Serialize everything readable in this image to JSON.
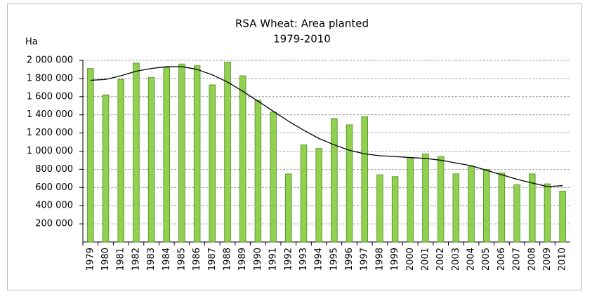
{
  "chart_data": {
    "type": "bar",
    "title": "RSA Wheat: Area planted",
    "subtitle": "1979-2010",
    "y_axis_label": "Ha",
    "categories": [
      "1979",
      "1980",
      "1981",
      "1982",
      "1983",
      "1984",
      "1985",
      "1986",
      "1987",
      "1988",
      "1989",
      "1990",
      "1991",
      "1992",
      "1993",
      "1994",
      "1995",
      "1996",
      "1997",
      "1998",
      "1999",
      "2000",
      "2001",
      "2002",
      "2003",
      "2004",
      "2005",
      "2006",
      "2007",
      "2008",
      "2009",
      "2010"
    ],
    "series": [
      {
        "type": "bar",
        "color": "#92d050",
        "values": [
          1910000,
          1620000,
          1790000,
          1970000,
          1810000,
          1920000,
          1960000,
          1940000,
          1730000,
          1980000,
          1830000,
          1560000,
          1430000,
          750000,
          1070000,
          1030000,
          1360000,
          1290000,
          1380000,
          740000,
          720000,
          930000,
          970000,
          940000,
          750000,
          830000,
          800000,
          760000,
          630000,
          750000,
          640000,
          560000
        ]
      },
      {
        "type": "line",
        "color": "#000000",
        "values": [
          1780000,
          1790000,
          1830000,
          1880000,
          1910000,
          1930000,
          1930000,
          1900000,
          1840000,
          1760000,
          1660000,
          1550000,
          1440000,
          1330000,
          1230000,
          1140000,
          1070000,
          1010000,
          970000,
          950000,
          940000,
          930000,
          920000,
          900000,
          870000,
          840000,
          790000,
          740000,
          690000,
          650000,
          610000,
          620000
        ]
      }
    ],
    "ylim": [
      0,
      2000000
    ],
    "yticks": [
      {
        "value": 200000,
        "label": "200 000"
      },
      {
        "value": 400000,
        "label": "400 000"
      },
      {
        "value": 600000,
        "label": "600 000"
      },
      {
        "value": 800000,
        "label": "800 000"
      },
      {
        "value": 1000000,
        "label": "1 000 000"
      },
      {
        "value": 1200000,
        "label": "1 200 000"
      },
      {
        "value": 1400000,
        "label": "1 400 000"
      },
      {
        "value": 1600000,
        "label": "1 600 000"
      },
      {
        "value": 1800000,
        "label": "1 800 000"
      },
      {
        "value": 2000000,
        "label": "2 000 000"
      }
    ],
    "grid": true
  }
}
